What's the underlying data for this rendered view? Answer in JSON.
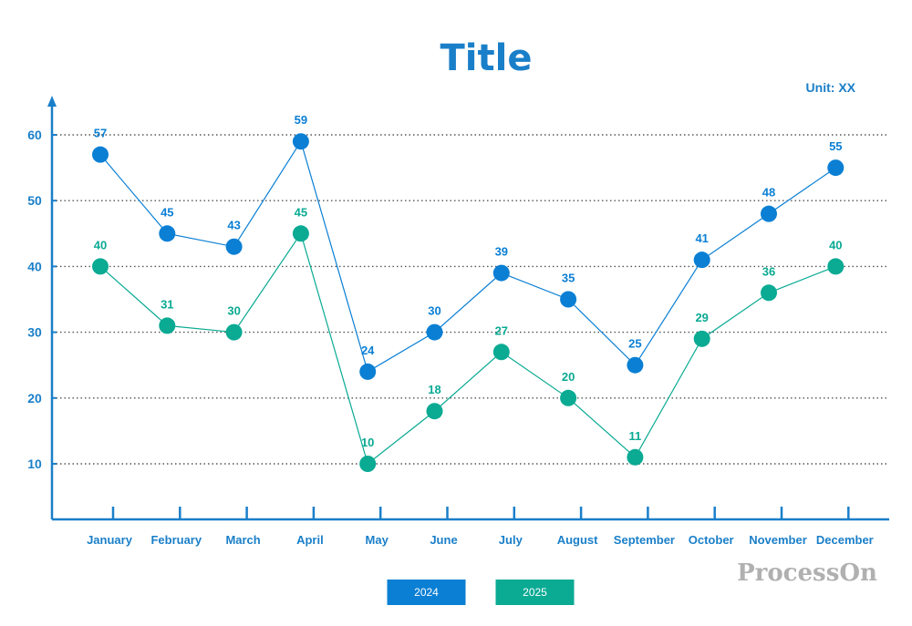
{
  "chart_data": {
    "type": "line",
    "title": "Title",
    "unit_label": "Unit: XX",
    "categories": [
      "January",
      "February",
      "March",
      "April",
      "May",
      "June",
      "July",
      "August",
      "September",
      "October",
      "November",
      "December"
    ],
    "series": [
      {
        "name": "2024",
        "color": "#0a7fd4",
        "values": [
          57,
          45,
          43,
          59,
          24,
          30,
          39,
          35,
          25,
          41,
          48,
          55
        ]
      },
      {
        "name": "2025",
        "color": "#0aaa93",
        "values": [
          40,
          31,
          30,
          45,
          10,
          18,
          27,
          20,
          11,
          29,
          36,
          40
        ]
      }
    ],
    "y_ticks": [
      10,
      20,
      30,
      40,
      50,
      60
    ],
    "ylim": [
      0,
      70
    ],
    "grid": true,
    "legend_position": "bottom-center",
    "axis_color": "#1a7fc9"
  },
  "watermark": "ProcessOn"
}
